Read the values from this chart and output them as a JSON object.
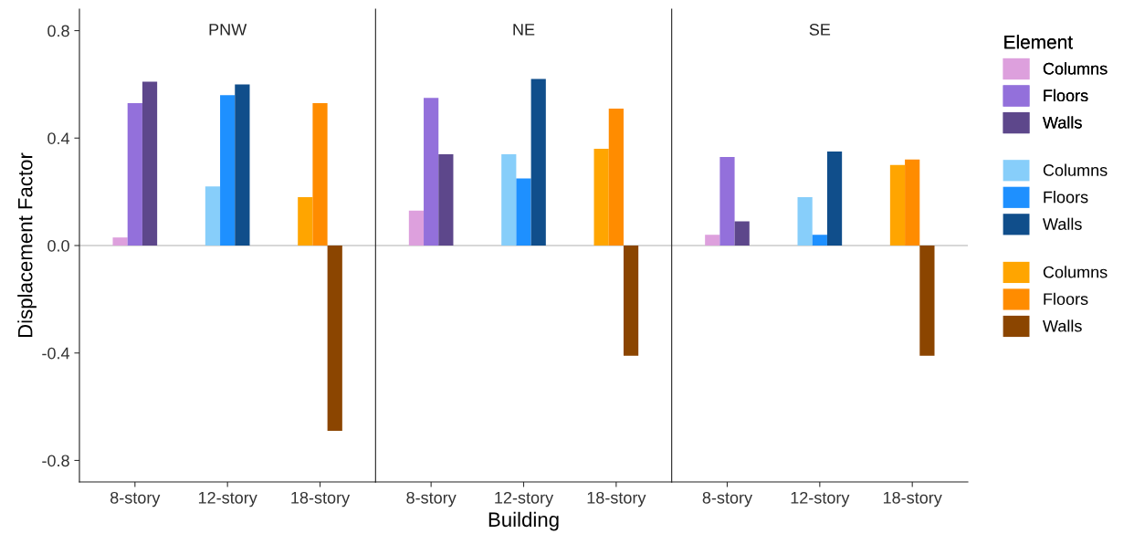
{
  "chart_data": [
    {
      "type": "bar",
      "title": "PNW",
      "ylabel": "Displacement Factor",
      "categories": [
        "8-story",
        "12-story",
        "18-story"
      ],
      "ylim": [
        -0.88,
        0.88
      ],
      "yticks": [
        -0.8,
        -0.4,
        {
          "value": 0,
          "label": "0.0"
        },
        0.4,
        0.8
      ],
      "grid": false,
      "ref_lines": [
        {
          "axis": "y",
          "value": 0,
          "color": "#b0b0b0"
        }
      ],
      "series": [
        {
          "color": "#dda0dd",
          "values": [
            0.03,
            null,
            null
          ]
        },
        {
          "color": "#9370db",
          "values": [
            0.53,
            null,
            null
          ]
        },
        {
          "color": "#5d478b",
          "values": [
            0.61,
            null,
            null
          ]
        },
        {
          "color": "#87cefa",
          "values": [
            null,
            0.22,
            null
          ]
        },
        {
          "color": "#1e90ff",
          "values": [
            null,
            0.56,
            null
          ]
        },
        {
          "color": "#104e8b",
          "values": [
            null,
            0.6,
            null
          ]
        },
        {
          "color": "#ffa500",
          "values": [
            null,
            null,
            0.18
          ]
        },
        {
          "color": "#ff8c00",
          "values": [
            null,
            null,
            0.53
          ]
        },
        {
          "color": "#8b4500",
          "values": [
            null,
            null,
            -0.69
          ]
        }
      ]
    },
    {
      "type": "bar",
      "title": "NE",
      "xlabel": "Building",
      "categories": [
        "8-story",
        "12-story",
        "18-story"
      ],
      "ylim": [
        -0.88,
        0.88
      ],
      "grid": false,
      "tick_labels": "x",
      "ref_lines": [
        {
          "axis": "y",
          "value": 0,
          "color": "#b0b0b0"
        }
      ],
      "series": [
        {
          "color": "#dda0dd",
          "values": [
            0.13,
            null,
            null
          ]
        },
        {
          "color": "#9370db",
          "values": [
            0.55,
            null,
            null
          ]
        },
        {
          "color": "#5d478b",
          "values": [
            0.34,
            null,
            null
          ]
        },
        {
          "color": "#87cefa",
          "values": [
            null,
            0.34,
            null
          ]
        },
        {
          "color": "#1e90ff",
          "values": [
            null,
            0.25,
            null
          ]
        },
        {
          "color": "#104e8b",
          "values": [
            null,
            0.62,
            null
          ]
        },
        {
          "color": "#ffa500",
          "values": [
            null,
            null,
            0.36
          ]
        },
        {
          "color": "#ff8c00",
          "values": [
            null,
            null,
            0.51
          ]
        },
        {
          "color": "#8b4500",
          "values": [
            null,
            null,
            -0.41
          ]
        }
      ]
    },
    {
      "type": "bar",
      "title": "SE",
      "categories": [
        "8-story",
        "12-story",
        "18-story"
      ],
      "ylim": [
        -0.88,
        0.88
      ],
      "grid": false,
      "legend": "right",
      "legend_title": "Element",
      "tick_labels": "x",
      "ref_lines": [
        {
          "axis": "y",
          "value": 0,
          "color": "#b0b0b0"
        }
      ],
      "series": [
        {
          "name": "Columns",
          "color": "#dda0dd",
          "values": [
            0.04,
            null,
            null
          ]
        },
        {
          "name": "Floors",
          "color": "#9370db",
          "values": [
            0.33,
            null,
            null
          ]
        },
        {
          "name": "Walls",
          "color": "#5d478b",
          "values": [
            0.09,
            null,
            null
          ]
        },
        {
          "name": "Columns",
          "color": "#87cefa",
          "values": [
            null,
            0.18,
            null
          ]
        },
        {
          "name": "Floors",
          "color": "#1e90ff",
          "values": [
            null,
            0.04,
            null
          ]
        },
        {
          "name": "Walls",
          "color": "#104e8b",
          "values": [
            null,
            0.35,
            null
          ]
        },
        {
          "name": "Columns",
          "color": "#ffa500",
          "values": [
            null,
            null,
            0.3
          ]
        },
        {
          "name": "Floors",
          "color": "#ff8c00",
          "values": [
            null,
            null,
            0.32
          ]
        },
        {
          "name": "Walls",
          "color": "#8b4500",
          "values": [
            null,
            null,
            -0.41
          ]
        }
      ]
    }
  ]
}
